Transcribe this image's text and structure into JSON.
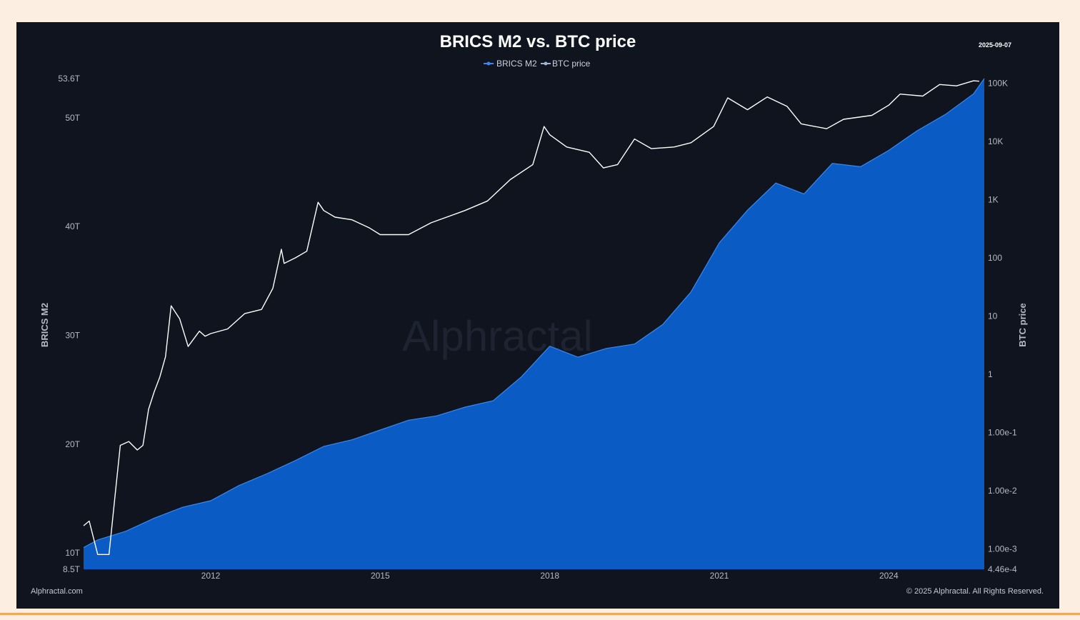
{
  "chart_data": {
    "type": "area",
    "title": "BRICS M2 vs. BTC price",
    "date_label": "2025-09-07",
    "watermark": "Alphractal",
    "footer_left": "Alphractal.com",
    "footer_right": "© 2025 Alphractal. All Rights Reserved.",
    "legend": [
      "BRICS M2",
      "BTC price"
    ],
    "legend_placement": "top-center",
    "grid": false,
    "colors": {
      "m2_fill": "#0b5bc4",
      "m2_line": "#3a87ee",
      "btc_line": "#ffffff",
      "background": "#0f141f"
    },
    "x_axis": {
      "ticks": [
        "2012",
        "2015",
        "2018",
        "2021",
        "2024"
      ],
      "range": [
        2009.75,
        2025.69
      ]
    },
    "left_axis": {
      "label": "BRICS M2",
      "ticks": [
        {
          "label": "53.6T",
          "value": 53.6
        },
        {
          "label": "50T",
          "value": 50
        },
        {
          "label": "40T",
          "value": 40
        },
        {
          "label": "30T",
          "value": 30
        },
        {
          "label": "20T",
          "value": 20
        },
        {
          "label": "10T",
          "value": 10
        },
        {
          "label": "8.5T",
          "value": 8.5
        }
      ],
      "range": [
        8.5,
        53.6
      ],
      "unit": "T"
    },
    "right_axis": {
      "label": "BTC price",
      "scale": "log",
      "ticks": [
        {
          "label": "100K",
          "value": 100000
        },
        {
          "label": "10K",
          "value": 10000
        },
        {
          "label": "1K",
          "value": 1000
        },
        {
          "label": "100",
          "value": 100
        },
        {
          "label": "10",
          "value": 10
        },
        {
          "label": "1",
          "value": 1
        },
        {
          "label": "1.00e-1",
          "value": 0.1
        },
        {
          "label": "1.00e-2",
          "value": 0.01
        },
        {
          "label": "1.00e-3",
          "value": 0.001
        },
        {
          "label": "4.46e-4",
          "value": 0.000446
        }
      ],
      "range": [
        0.000446,
        120000
      ]
    },
    "series": [
      {
        "name": "BRICS M2",
        "unit": "T",
        "x": [
          2009.75,
          2010.0,
          2010.5,
          2011.0,
          2011.5,
          2012.0,
          2012.5,
          2013.0,
          2013.5,
          2014.0,
          2014.5,
          2015.0,
          2015.5,
          2016.0,
          2016.5,
          2017.0,
          2017.5,
          2018.0,
          2018.5,
          2019.0,
          2019.5,
          2020.0,
          2020.5,
          2021.0,
          2021.5,
          2022.0,
          2022.5,
          2023.0,
          2023.5,
          2024.0,
          2024.5,
          2025.0,
          2025.5,
          2025.69
        ],
        "y": [
          10.5,
          11.2,
          12.0,
          13.2,
          14.2,
          14.8,
          16.2,
          17.3,
          18.5,
          19.8,
          20.4,
          21.3,
          22.2,
          22.6,
          23.4,
          24.0,
          26.2,
          29.0,
          28.0,
          28.8,
          29.2,
          31.0,
          34.0,
          38.5,
          41.5,
          44.0,
          43.0,
          45.8,
          45.5,
          47.0,
          48.8,
          50.3,
          52.2,
          53.6
        ]
      },
      {
        "name": "BTC price",
        "unit": "USD",
        "x": [
          2009.75,
          2009.85,
          2010.0,
          2010.2,
          2010.3,
          2010.4,
          2010.55,
          2010.7,
          2010.8,
          2010.9,
          2011.0,
          2011.1,
          2011.2,
          2011.3,
          2011.45,
          2011.6,
          2011.8,
          2011.9,
          2012.0,
          2012.3,
          2012.6,
          2012.9,
          2013.1,
          2013.25,
          2013.3,
          2013.5,
          2013.7,
          2013.9,
          2014.0,
          2014.2,
          2014.5,
          2014.8,
          2015.0,
          2015.5,
          2015.9,
          2016.5,
          2016.9,
          2017.3,
          2017.7,
          2017.9,
          2018.0,
          2018.3,
          2018.7,
          2018.95,
          2019.2,
          2019.5,
          2019.8,
          2020.2,
          2020.5,
          2020.9,
          2021.15,
          2021.5,
          2021.85,
          2022.2,
          2022.45,
          2022.9,
          2023.2,
          2023.7,
          2024.0,
          2024.2,
          2024.6,
          2024.9,
          2025.2,
          2025.5,
          2025.6
        ],
        "y": [
          0.0025,
          0.003,
          0.0008,
          0.0008,
          0.007,
          0.06,
          0.07,
          0.05,
          0.06,
          0.25,
          0.5,
          0.9,
          2.0,
          15.0,
          9.0,
          3.0,
          5.5,
          4.5,
          5.0,
          6.0,
          11.0,
          13.0,
          30.0,
          140.0,
          80.0,
          100.0,
          130.0,
          900.0,
          650.0,
          500.0,
          450.0,
          330.0,
          250.0,
          250.0,
          400.0,
          650.0,
          950.0,
          2200.0,
          4000.0,
          18000.0,
          13000.0,
          8000.0,
          6500.0,
          3500.0,
          4000.0,
          11000.0,
          7500.0,
          8000.0,
          9500.0,
          18000.0,
          56000.0,
          35000.0,
          58000.0,
          40000.0,
          20000.0,
          16500.0,
          24000.0,
          28000.0,
          42000.0,
          65000.0,
          60000.0,
          95000.0,
          90000.0,
          110000.0,
          108000.0
        ]
      }
    ]
  }
}
